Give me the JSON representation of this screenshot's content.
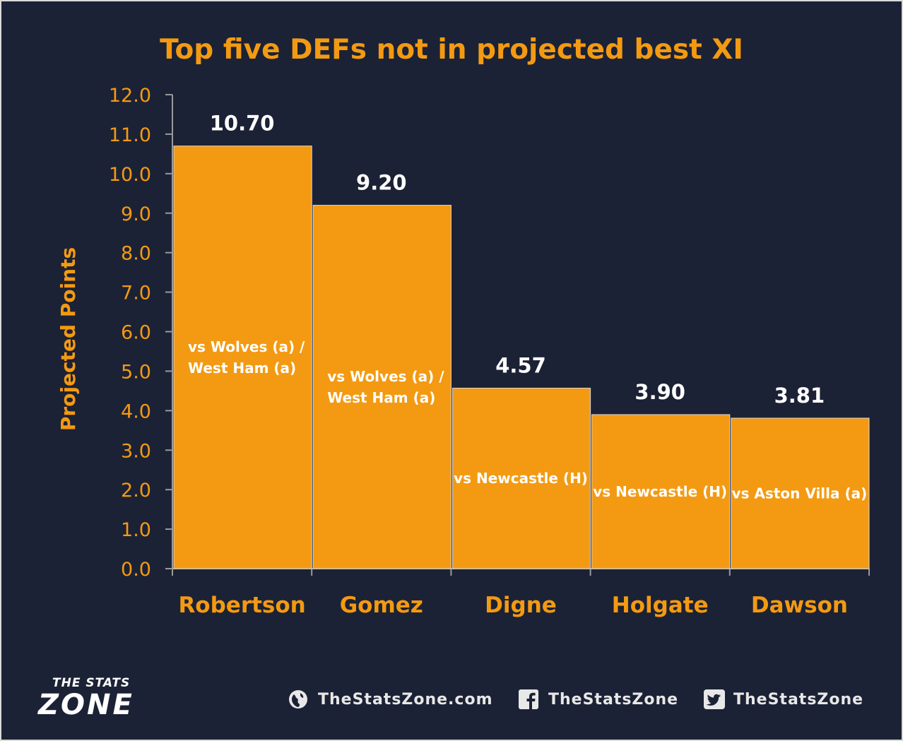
{
  "chart_data": {
    "type": "bar",
    "title": "Top five DEFs not in projected best XI",
    "ylabel": "Projected Points",
    "xlabel": "",
    "ylim": [
      0,
      12
    ],
    "yticks": [
      "0.0",
      "1.0",
      "2.0",
      "3.0",
      "4.0",
      "5.0",
      "6.0",
      "7.0",
      "8.0",
      "9.0",
      "10.0",
      "11.0",
      "12.0"
    ],
    "categories": [
      "Robertson",
      "Gomez",
      "Digne",
      "Holgate",
      "Dawson"
    ],
    "values": [
      10.7,
      9.2,
      4.57,
      3.9,
      3.81
    ],
    "value_labels": [
      "10.70",
      "9.20",
      "4.57",
      "3.90",
      "3.81"
    ],
    "fixtures": [
      [
        "vs Wolves (a) /",
        "West Ham (a)"
      ],
      [
        "vs Wolves (a) /",
        "West Ham (a)"
      ],
      [
        "vs Newcastle (H)"
      ],
      [
        "vs Newcastle (H)"
      ],
      [
        "vs Aston Villa (a)"
      ]
    ],
    "grid": false,
    "colors": {
      "bar": "#f39a12",
      "background": "#1c2235",
      "text_accent": "#f39a12",
      "value_text": "#ffffff"
    }
  },
  "footer": {
    "logo_top": "THE STATS",
    "logo_main": "ZONE",
    "website": "TheStatsZone.com",
    "facebook": "TheStatsZone",
    "twitter": "TheStatsZone",
    "icons": [
      "globe-icon",
      "facebook-icon",
      "twitter-icon"
    ]
  }
}
